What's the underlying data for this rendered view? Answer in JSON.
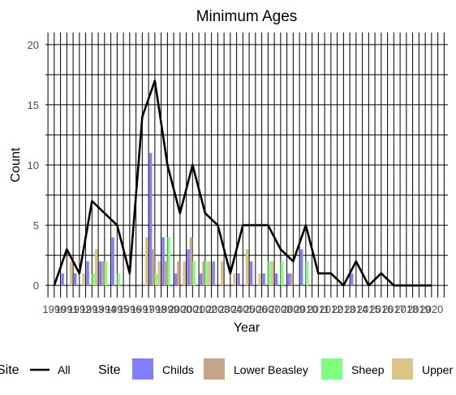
{
  "chart_data": {
    "type": "bar",
    "title": "Minimum Ages",
    "xlabel": "Year",
    "ylabel": "Count",
    "ylim": [
      0,
      20
    ],
    "yticks": [
      0,
      5,
      10,
      15,
      20
    ],
    "grid": true,
    "legend_position": "bottom",
    "x": [
      1990,
      1991,
      1992,
      1993,
      1994,
      1995,
      1996,
      1997,
      1998,
      1999,
      2000,
      2001,
      2002,
      2003,
      2004,
      2005,
      2006,
      2007,
      2008,
      2009,
      2010,
      2011,
      2012,
      2013,
      2014,
      2015,
      2016,
      2017,
      2018,
      2019,
      2020
    ],
    "series": [
      {
        "name": "Childs",
        "kind": "bar",
        "color": "#8080ff",
        "values": [
          0,
          1,
          1,
          2,
          2,
          4,
          0,
          0,
          11,
          4,
          1,
          3,
          1,
          2,
          0,
          1,
          2,
          1,
          1,
          1,
          3,
          0,
          0,
          0,
          1,
          0,
          0,
          0,
          0,
          0,
          0
        ]
      },
      {
        "name": "Lower Beasley",
        "kind": "bar",
        "color": "#c4a387",
        "values": [
          0,
          0,
          0,
          0,
          2,
          0,
          0,
          0,
          3,
          2,
          2,
          4,
          2,
          0,
          0,
          0,
          0,
          0,
          0,
          1,
          0,
          0,
          0,
          0,
          0,
          0,
          0,
          0,
          0,
          0,
          0
        ]
      },
      {
        "name": "Sheep",
        "kind": "bar",
        "color": "#80ff80",
        "values": [
          0,
          0,
          0,
          1,
          2,
          1,
          0,
          0,
          1,
          4,
          0,
          2,
          2,
          0,
          0,
          0,
          0,
          2,
          2,
          0,
          2,
          0,
          0,
          0,
          0,
          0,
          0,
          0,
          0,
          0,
          0
        ]
      },
      {
        "name": "Upper",
        "kind": "bar",
        "color": "#dcc486",
        "values": [
          0,
          2,
          1,
          3,
          0,
          0,
          0,
          4,
          2,
          0,
          2,
          0,
          2,
          2,
          1,
          3,
          1,
          2,
          0,
          0,
          0,
          0,
          0,
          0,
          0,
          0,
          0,
          0,
          0,
          0,
          0
        ]
      },
      {
        "name": "All",
        "kind": "line",
        "color": "#000000",
        "values": [
          0,
          3,
          1,
          7,
          6,
          5,
          1,
          14,
          17,
          10,
          6,
          10,
          6,
          5,
          1,
          5,
          5,
          5,
          3,
          2,
          5,
          1,
          1,
          0,
          2,
          0,
          1,
          0,
          0,
          0,
          0
        ]
      }
    ],
    "legend": {
      "line_title": "Site",
      "bar_title": "Site"
    }
  }
}
